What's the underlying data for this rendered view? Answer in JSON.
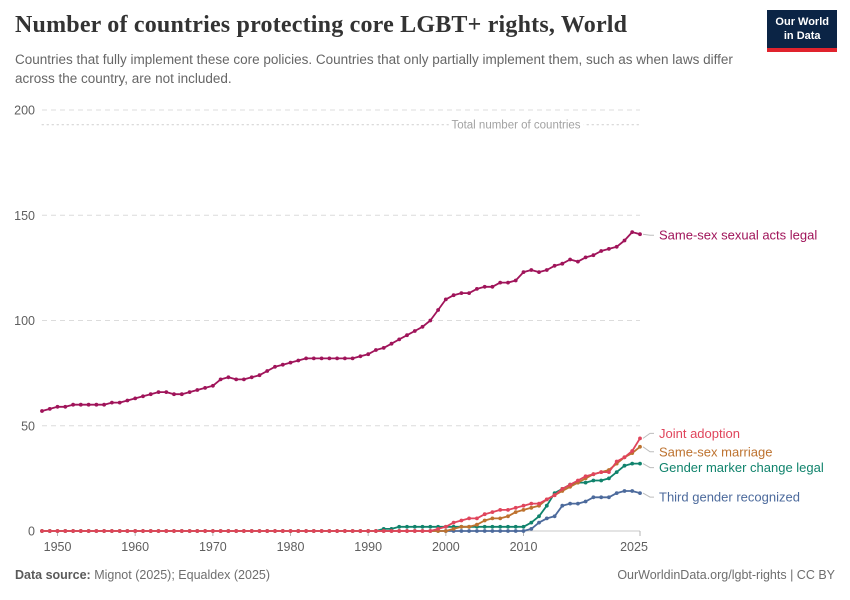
{
  "header": {
    "title": "Number of countries protecting core LGBT+ rights, World",
    "subtitle": "Countries that fully implement these core policies. Countries that only partially implement them, such as when laws differ across the country, are not included."
  },
  "logo": {
    "line1": "Our World",
    "line2": "in Data"
  },
  "footer": {
    "source_label": "Data source:",
    "source_value": "Mignot (2025); Equaldex (2025)",
    "link": "OurWorldinData.org/lgbt-rights | CC BY"
  },
  "chart_data": {
    "type": "line",
    "title": "Number of countries protecting core LGBT+ rights, World",
    "xlabel": "",
    "ylabel": "",
    "ylim": [
      0,
      200
    ],
    "grid": "horizontal-dashed",
    "legend_position": "right-edge-labels",
    "x_ticks": [
      1950,
      1960,
      1970,
      1980,
      1990,
      2000,
      2010,
      2025
    ],
    "y_ticks": [
      0,
      50,
      100,
      150,
      200
    ],
    "annotation": {
      "label": "Total number of countries",
      "value": 193
    },
    "x": [
      1948,
      1949,
      1950,
      1951,
      1952,
      1953,
      1954,
      1955,
      1956,
      1957,
      1958,
      1959,
      1960,
      1961,
      1962,
      1963,
      1964,
      1965,
      1966,
      1967,
      1968,
      1969,
      1970,
      1971,
      1972,
      1973,
      1974,
      1975,
      1976,
      1977,
      1978,
      1979,
      1980,
      1981,
      1982,
      1983,
      1984,
      1985,
      1986,
      1987,
      1988,
      1989,
      1990,
      1991,
      1992,
      1993,
      1994,
      1995,
      1996,
      1997,
      1998,
      1999,
      2000,
      2001,
      2002,
      2003,
      2004,
      2005,
      2006,
      2007,
      2008,
      2009,
      2010,
      2011,
      2012,
      2013,
      2014,
      2015,
      2016,
      2017,
      2018,
      2019,
      2020,
      2021,
      2022,
      2023,
      2024,
      2025
    ],
    "series": [
      {
        "id": "same-sex-sexual-acts-legal",
        "label": "Same-sex sexual acts legal",
        "color": "#a0145a",
        "values": [
          57,
          58,
          59,
          59,
          60,
          60,
          60,
          60,
          60,
          61,
          61,
          62,
          63,
          64,
          65,
          66,
          66,
          65,
          65,
          66,
          67,
          68,
          69,
          72,
          73,
          72,
          72,
          73,
          74,
          76,
          78,
          79,
          80,
          81,
          82,
          82,
          82,
          82,
          82,
          82,
          82,
          83,
          84,
          86,
          87,
          89,
          91,
          93,
          95,
          97,
          100,
          105,
          110,
          112,
          113,
          113,
          115,
          116,
          116,
          118,
          118,
          119,
          123,
          124,
          123,
          124,
          126,
          127,
          129,
          128,
          130,
          131,
          133,
          134,
          135,
          138,
          142,
          141
        ]
      },
      {
        "id": "joint-adoption",
        "label": "Joint adoption",
        "color": "#e0455c",
        "values": [
          0,
          0,
          0,
          0,
          0,
          0,
          0,
          0,
          0,
          0,
          0,
          0,
          0,
          0,
          0,
          0,
          0,
          0,
          0,
          0,
          0,
          0,
          0,
          0,
          0,
          0,
          0,
          0,
          0,
          0,
          0,
          0,
          0,
          0,
          0,
          0,
          0,
          0,
          0,
          0,
          0,
          0,
          0,
          0,
          0,
          0,
          0,
          0,
          0,
          0,
          0,
          1,
          2,
          4,
          5,
          6,
          6,
          8,
          9,
          10,
          10,
          11,
          12,
          13,
          13,
          15,
          17,
          20,
          22,
          24,
          26,
          27,
          28,
          28,
          33,
          35,
          38,
          44
        ]
      },
      {
        "id": "same-sex-marriage",
        "label": "Same-sex marriage",
        "color": "#bd722f",
        "values": [
          0,
          0,
          0,
          0,
          0,
          0,
          0,
          0,
          0,
          0,
          0,
          0,
          0,
          0,
          0,
          0,
          0,
          0,
          0,
          0,
          0,
          0,
          0,
          0,
          0,
          0,
          0,
          0,
          0,
          0,
          0,
          0,
          0,
          0,
          0,
          0,
          0,
          0,
          0,
          0,
          0,
          0,
          0,
          0,
          0,
          0,
          0,
          0,
          0,
          0,
          0,
          0,
          0,
          1,
          2,
          2,
          3,
          5,
          6,
          6,
          7,
          9,
          10,
          11,
          12,
          15,
          17,
          19,
          21,
          23,
          25,
          27,
          28,
          29,
          32,
          35,
          37,
          40
        ]
      },
      {
        "id": "gender-marker-change-legal",
        "label": "Gender marker change legal",
        "color": "#10836c",
        "values": [
          0,
          0,
          0,
          0,
          0,
          0,
          0,
          0,
          0,
          0,
          0,
          0,
          0,
          0,
          0,
          0,
          0,
          0,
          0,
          0,
          0,
          0,
          0,
          0,
          0,
          0,
          0,
          0,
          0,
          0,
          0,
          0,
          0,
          0,
          0,
          0,
          0,
          0,
          0,
          0,
          0,
          0,
          0,
          0,
          1,
          1,
          2,
          2,
          2,
          2,
          2,
          2,
          2,
          2,
          2,
          2,
          2,
          2,
          2,
          2,
          2,
          2,
          2,
          4,
          7,
          12,
          18,
          20,
          22,
          23,
          23,
          24,
          24,
          25,
          28,
          31,
          32,
          32
        ]
      },
      {
        "id": "third-gender-recognized",
        "label": "Third gender recognized",
        "color": "#4c6a9c",
        "values": [
          0,
          0,
          0,
          0,
          0,
          0,
          0,
          0,
          0,
          0,
          0,
          0,
          0,
          0,
          0,
          0,
          0,
          0,
          0,
          0,
          0,
          0,
          0,
          0,
          0,
          0,
          0,
          0,
          0,
          0,
          0,
          0,
          0,
          0,
          0,
          0,
          0,
          0,
          0,
          0,
          0,
          0,
          0,
          0,
          0,
          0,
          0,
          0,
          0,
          0,
          0,
          0,
          0,
          0,
          0,
          0,
          0,
          0,
          0,
          0,
          0,
          0,
          0,
          1,
          4,
          6,
          7,
          12,
          13,
          13,
          14,
          16,
          16,
          16,
          18,
          19,
          19,
          18
        ]
      }
    ]
  }
}
